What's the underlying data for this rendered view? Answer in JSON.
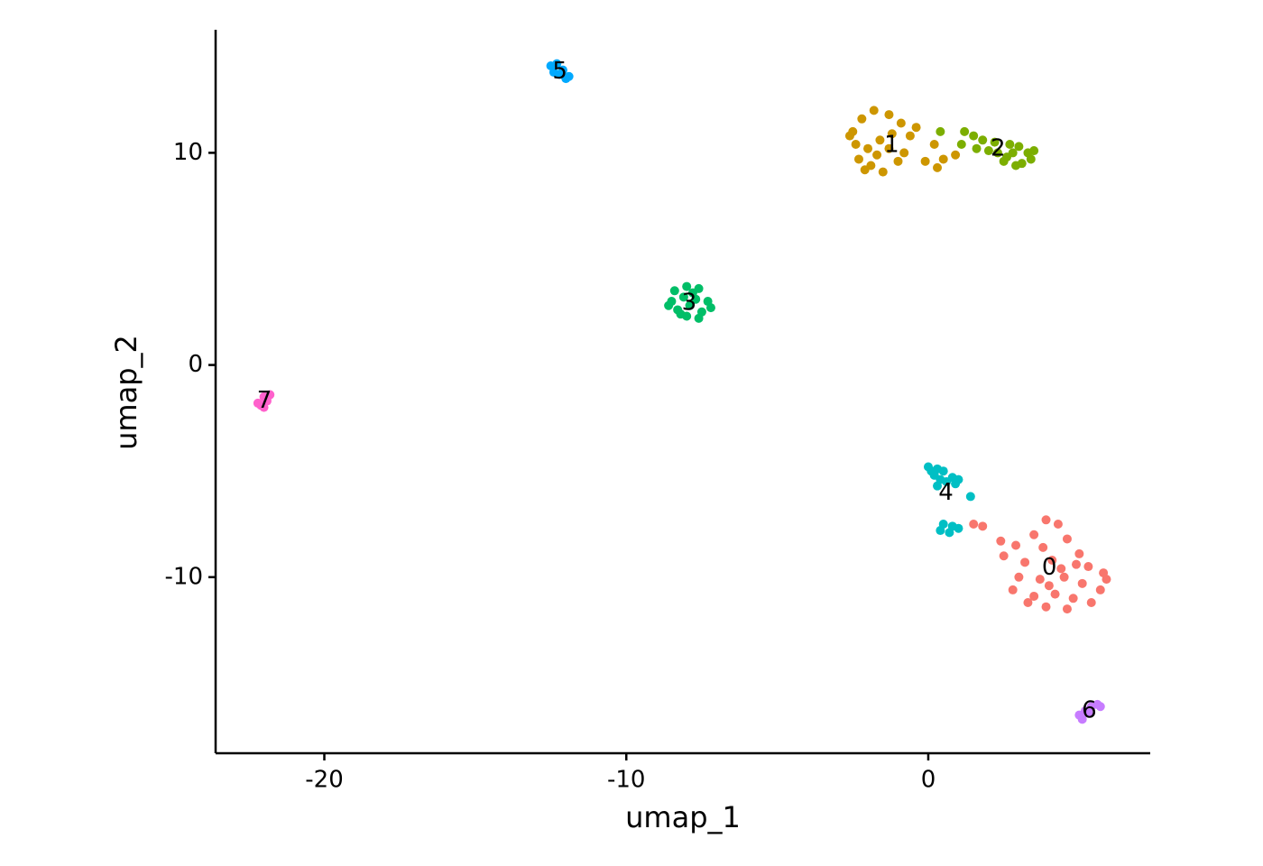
{
  "chart_data": {
    "type": "scatter",
    "x_label": "umap_1",
    "y_label": "umap_2",
    "xlim": [
      -23.6,
      7.35
    ],
    "ylim": [
      -18.3,
      15.8
    ],
    "xticks": [
      -20,
      -10,
      0
    ],
    "yticks": [
      -10,
      0,
      10
    ],
    "grid": false,
    "series": [
      {
        "name": "0",
        "color": "#F8766D",
        "x": [
          3.9,
          4.3,
          3.5,
          4.6,
          2.9,
          3.8,
          5.0,
          2.5,
          3.2,
          4.1,
          5.3,
          5.8,
          3.0,
          3.7,
          4.5,
          5.1,
          5.7,
          2.8,
          3.5,
          4.2,
          4.8,
          5.4,
          3.9,
          4.6,
          4.4,
          3.3,
          2.4,
          1.5,
          1.8,
          5.9,
          4.9,
          4.0
        ],
        "values": [
          -7.3,
          -7.5,
          -8.0,
          -8.2,
          -8.5,
          -8.6,
          -8.9,
          -9.0,
          -9.3,
          -9.2,
          -9.5,
          -9.8,
          -10.0,
          -10.1,
          -10.0,
          -10.3,
          -10.6,
          -10.6,
          -10.9,
          -10.8,
          -11.0,
          -11.2,
          -11.4,
          -11.5,
          -9.6,
          -11.2,
          -8.3,
          -7.5,
          -7.6,
          -10.1,
          -9.4,
          -10.4
        ]
      },
      {
        "name": "1",
        "color": "#CD9600",
        "x": [
          -2.5,
          -2.2,
          -1.8,
          -1.3,
          -0.9,
          -2.4,
          -2.0,
          -1.6,
          -1.2,
          -0.6,
          -2.3,
          -1.9,
          -1.5,
          -1.0,
          -1.3,
          -0.4,
          0.2,
          0.5,
          0.9,
          0.3,
          -0.1,
          -1.7,
          -0.8,
          -2.6,
          -2.1
        ],
        "values": [
          11.0,
          11.6,
          12.0,
          11.8,
          11.4,
          10.4,
          10.2,
          10.6,
          10.9,
          10.8,
          9.7,
          9.4,
          9.1,
          9.6,
          10.2,
          11.2,
          10.4,
          9.7,
          9.9,
          9.3,
          9.6,
          9.9,
          10.0,
          10.8,
          9.2
        ]
      },
      {
        "name": "2",
        "color": "#7CAE00",
        "x": [
          1.2,
          1.5,
          1.8,
          1.1,
          1.6,
          2.3,
          2.7,
          3.0,
          3.3,
          2.5,
          2.9,
          3.4,
          2.6,
          3.1,
          2.2,
          3.5,
          2.8,
          0.4,
          2.0
        ],
        "values": [
          11.0,
          10.8,
          10.6,
          10.4,
          10.2,
          10.0,
          10.4,
          10.3,
          10.0,
          9.6,
          9.4,
          9.7,
          9.8,
          9.5,
          10.5,
          10.1,
          10.0,
          11.0,
          10.1
        ]
      },
      {
        "name": "3",
        "color": "#00BE67",
        "x": [
          -8.4,
          -8.0,
          -7.6,
          -8.5,
          -8.1,
          -7.7,
          -7.3,
          -8.3,
          -7.9,
          -7.5,
          -8.0,
          -7.6,
          -7.2,
          -8.6,
          -7.8,
          -8.2
        ],
        "values": [
          3.5,
          3.7,
          3.6,
          3.0,
          3.2,
          3.1,
          3.0,
          2.6,
          2.8,
          2.5,
          2.3,
          2.2,
          2.7,
          2.8,
          3.4,
          2.4
        ]
      },
      {
        "name": "4",
        "color": "#00BFC4",
        "x": [
          0.0,
          0.3,
          0.5,
          0.8,
          0.2,
          0.6,
          0.9,
          0.3,
          0.4,
          1.4,
          0.5,
          0.8,
          0.4,
          1.0,
          0.7,
          0.1,
          1.0
        ],
        "values": [
          -4.8,
          -4.9,
          -5.0,
          -5.3,
          -5.2,
          -5.5,
          -5.6,
          -5.7,
          -5.4,
          -6.2,
          -7.5,
          -7.6,
          -7.8,
          -7.7,
          -7.9,
          -5.0,
          -5.4
        ]
      },
      {
        "name": "5",
        "color": "#00A9FF",
        "x": [
          -12.5,
          -12.3,
          -12.1,
          -12.4,
          -11.9,
          -12.2,
          -12.0
        ],
        "values": [
          14.1,
          14.2,
          13.9,
          13.8,
          13.6,
          13.7,
          13.5
        ]
      },
      {
        "name": "6",
        "color": "#C77CFF",
        "x": [
          5.0,
          5.2,
          5.4,
          5.6,
          5.1,
          5.3,
          5.7
        ],
        "values": [
          -16.5,
          -16.3,
          -16.1,
          -16.0,
          -16.7,
          -16.4,
          -16.1
        ]
      },
      {
        "name": "7",
        "color": "#FF61CC",
        "x": [
          -22.2,
          -22.0,
          -21.9,
          -22.1,
          -21.8,
          -22.0,
          -21.9
        ],
        "values": [
          -1.8,
          -1.5,
          -1.7,
          -1.9,
          -1.4,
          -2.0,
          -1.6
        ]
      }
    ]
  }
}
